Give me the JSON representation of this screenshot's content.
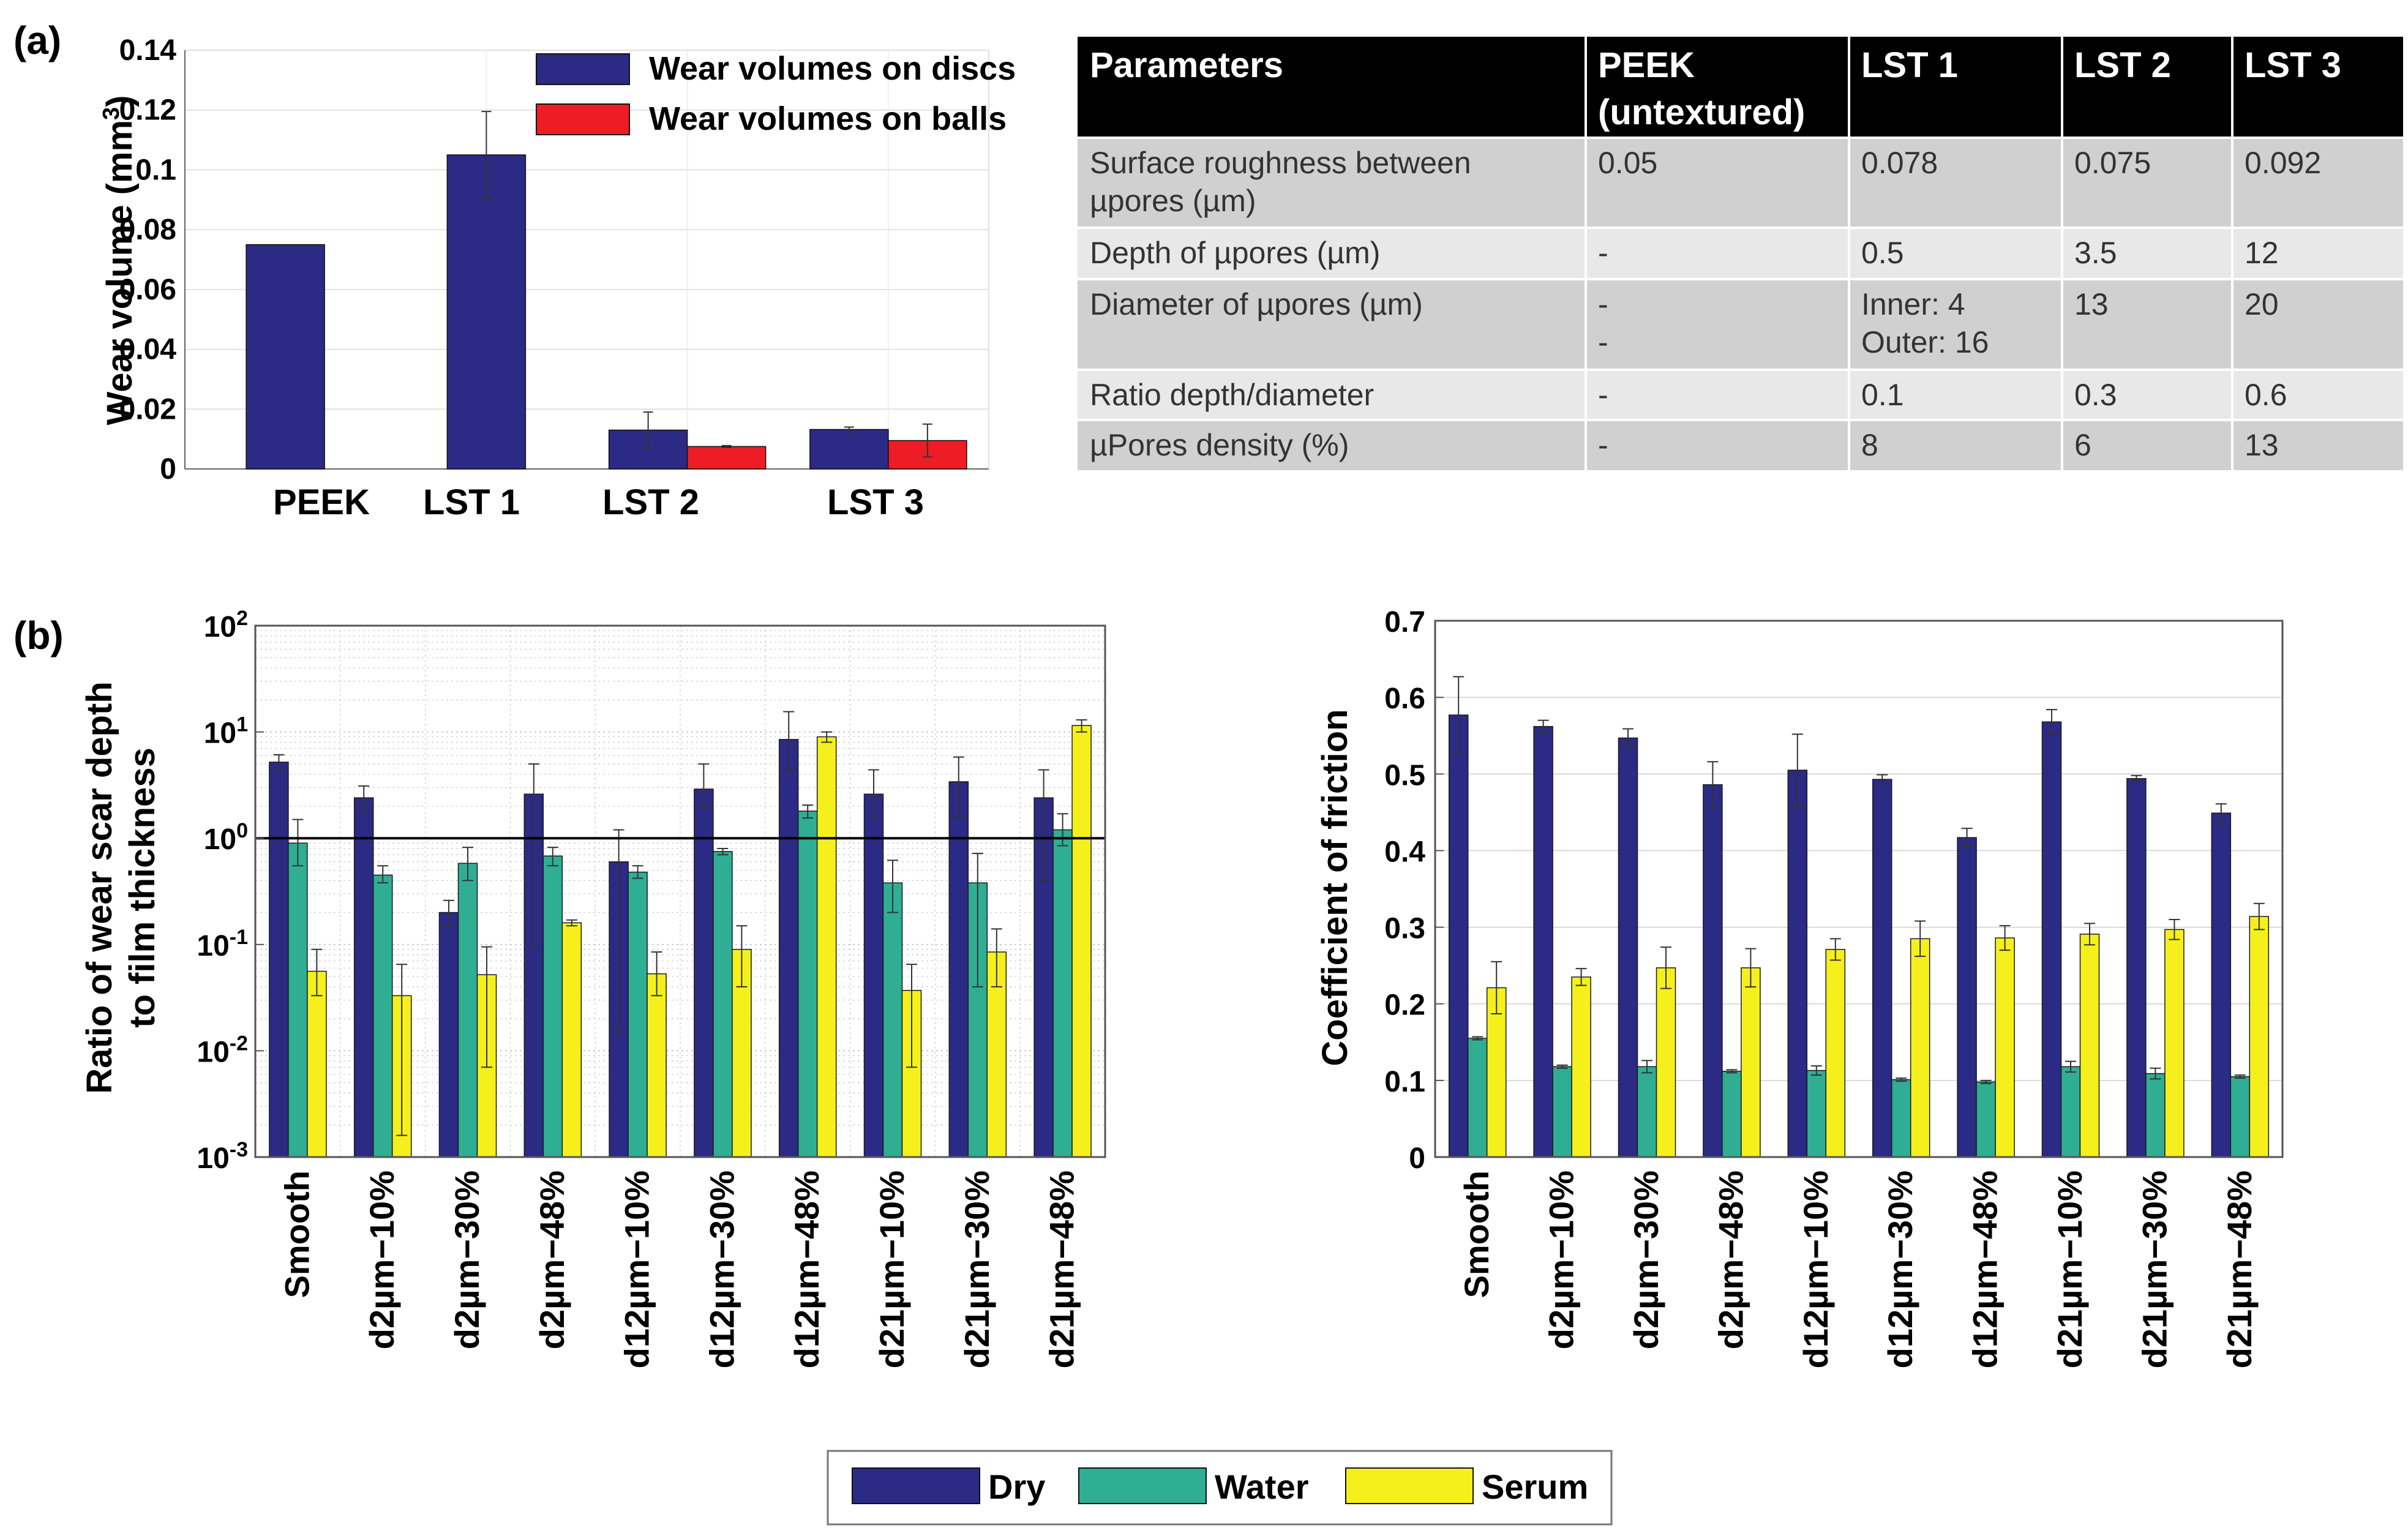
{
  "panel_labels": {
    "a": "(a)",
    "b": "(b)"
  },
  "colors": {
    "disc": "#2b2a85",
    "ball": "#ee1c25",
    "dry": "#2b2a85",
    "water": "#2fae93",
    "serum": "#f5f01c",
    "grid": "#d9d9d9"
  },
  "chart_data": [
    {
      "id": "wear-volume",
      "type": "bar",
      "title": "",
      "xlabel": "",
      "ylabel": "Wear volume (mm",
      "ylabel_sup": "3",
      "ylabel_end": ")",
      "categories": [
        "PEEK",
        "LST 1",
        "LST 2",
        "LST 3"
      ],
      "ylim": [
        0,
        0.14
      ],
      "yticks": [
        0,
        0.02,
        0.04,
        0.06,
        0.08,
        0.1,
        0.12,
        0.14
      ],
      "ytick_labels": [
        "0",
        "0.02",
        "0.04",
        "0.06",
        "0.08",
        "0.1",
        "0.12",
        "0.14"
      ],
      "legend_position": "top-right",
      "series": [
        {
          "name": "Wear volumes on discs",
          "color": "#2b2a85",
          "values": [
            0.075,
            0.105,
            0.013,
            0.0132
          ],
          "error": [
            null,
            0.0145,
            0.006,
            0.0008
          ]
        },
        {
          "name": "Wear volumes on balls",
          "color": "#ee1c25",
          "values": [
            null,
            null,
            0.0075,
            0.0095
          ],
          "error": [
            null,
            null,
            0.0003,
            0.0055
          ]
        }
      ]
    },
    {
      "id": "wear-ratio",
      "type": "bar",
      "yscale": "log",
      "title": "",
      "ylabel_line1": "Ratio of wear scar depth",
      "ylabel_line2": "to film thickness",
      "categories": [
        "Smooth",
        "d2µm−10%",
        "d2µm−30%",
        "d2µm−48%",
        "d12µm−10%",
        "d12µm−30%",
        "d12µm−48%",
        "d21µm−10%",
        "d21µm−30%",
        "d21µm−48%"
      ],
      "ylim": [
        0.001,
        100
      ],
      "ytick_exponents": [
        "-3",
        "-2",
        "-1",
        "0",
        "1",
        "2"
      ],
      "tick_base": "10",
      "reference_line": 1,
      "series": [
        {
          "name": "Dry",
          "color": "#2b2a85",
          "values": [
            5.2,
            2.4,
            0.2,
            2.6,
            0.6,
            2.9,
            8.5,
            2.6,
            3.4,
            2.4
          ],
          "error_low": [
            4.3,
            1.8,
            0.15,
            0.09,
            0.015,
            2.0,
            4.3,
            1.5,
            1.6,
            0.4
          ],
          "error_high": [
            6.1,
            3.1,
            0.26,
            5.0,
            1.2,
            5.0,
            15.5,
            4.4,
            5.8,
            4.4
          ]
        },
        {
          "name": "Water",
          "color": "#2fae93",
          "values": [
            0.9,
            0.45,
            0.58,
            0.68,
            0.48,
            0.75,
            1.8,
            0.38,
            0.38,
            1.2
          ],
          "error_low": [
            0.55,
            0.38,
            0.4,
            0.55,
            0.42,
            0.7,
            1.55,
            0.2,
            0.04,
            0.85
          ],
          "error_high": [
            1.5,
            0.55,
            0.82,
            0.82,
            0.55,
            0.8,
            2.05,
            0.62,
            0.72,
            1.7
          ]
        },
        {
          "name": "Serum",
          "color": "#f5f01c",
          "values": [
            0.056,
            0.033,
            0.052,
            0.16,
            0.053,
            0.09,
            9.0,
            0.037,
            0.085,
            11.5
          ],
          "error_low": [
            0.033,
            0.0016,
            0.007,
            0.15,
            0.033,
            0.04,
            8.0,
            0.007,
            0.04,
            10.0
          ],
          "error_high": [
            0.09,
            0.065,
            0.095,
            0.17,
            0.085,
            0.15,
            10.0,
            0.065,
            0.14,
            13.0
          ]
        }
      ]
    },
    {
      "id": "friction",
      "type": "bar",
      "title": "",
      "ylabel": "Coefficient of friction",
      "categories": [
        "Smooth",
        "d2µm−10%",
        "d2µm−30%",
        "d2µm−48%",
        "d12µm−10%",
        "d12µm−30%",
        "d12µm−48%",
        "d21µm−10%",
        "d21µm−30%",
        "d21µm−48%"
      ],
      "ylim": [
        0,
        0.7
      ],
      "yticks": [
        0,
        0.1,
        0.2,
        0.3,
        0.4,
        0.5,
        0.6,
        0.7
      ],
      "ytick_labels": [
        "0",
        "0.1",
        "0.2",
        "0.3",
        "0.4",
        "0.5",
        "0.6",
        "0.7"
      ],
      "series": [
        {
          "name": "Dry",
          "color": "#2b2a85",
          "values": [
            0.577,
            0.562,
            0.547,
            0.486,
            0.505,
            0.493,
            0.417,
            0.568,
            0.494,
            0.449
          ],
          "error": [
            0.05,
            0.008,
            0.012,
            0.03,
            0.047,
            0.006,
            0.012,
            0.016,
            0.004,
            0.012
          ]
        },
        {
          "name": "Water",
          "color": "#2fae93",
          "values": [
            0.155,
            0.118,
            0.118,
            0.112,
            0.113,
            0.101,
            0.098,
            0.118,
            0.109,
            0.105
          ],
          "error": [
            0.002,
            0.002,
            0.008,
            0.002,
            0.006,
            0.002,
            0.002,
            0.007,
            0.007,
            0.002
          ]
        },
        {
          "name": "Serum",
          "color": "#f5f01c",
          "values": [
            0.221,
            0.235,
            0.247,
            0.247,
            0.271,
            0.285,
            0.286,
            0.291,
            0.297,
            0.314
          ],
          "error": [
            0.034,
            0.011,
            0.027,
            0.025,
            0.014,
            0.023,
            0.016,
            0.014,
            0.013,
            0.017
          ]
        }
      ]
    }
  ],
  "legend_b": [
    "Dry",
    "Water",
    "Serum"
  ],
  "table": {
    "headers": [
      [
        "Parameters"
      ],
      [
        "PEEK",
        "(untextured)"
      ],
      [
        "LST 1"
      ],
      [
        "LST 2"
      ],
      [
        "LST 3"
      ]
    ],
    "rows": [
      [
        [
          "Surface roughness between",
          "µpores (µm)"
        ],
        [
          "0.05"
        ],
        [
          "0.078"
        ],
        [
          "0.075"
        ],
        [
          "0.092"
        ]
      ],
      [
        [
          "Depth of µpores (µm)"
        ],
        [
          "-"
        ],
        [
          "0.5"
        ],
        [
          "3.5"
        ],
        [
          "12"
        ]
      ],
      [
        [
          "Diameter of µpores (µm)"
        ],
        [
          "-",
          "-"
        ],
        [
          "Inner: 4",
          "Outer: 16"
        ],
        [
          "13"
        ],
        [
          "20"
        ]
      ],
      [
        [
          "Ratio depth/diameter"
        ],
        [
          "-"
        ],
        [
          "0.1"
        ],
        [
          "0.3"
        ],
        [
          "0.6"
        ]
      ],
      [
        [
          "µPores density (%)"
        ],
        [
          "-"
        ],
        [
          "8"
        ],
        [
          "6"
        ],
        [
          "13"
        ]
      ]
    ]
  }
}
